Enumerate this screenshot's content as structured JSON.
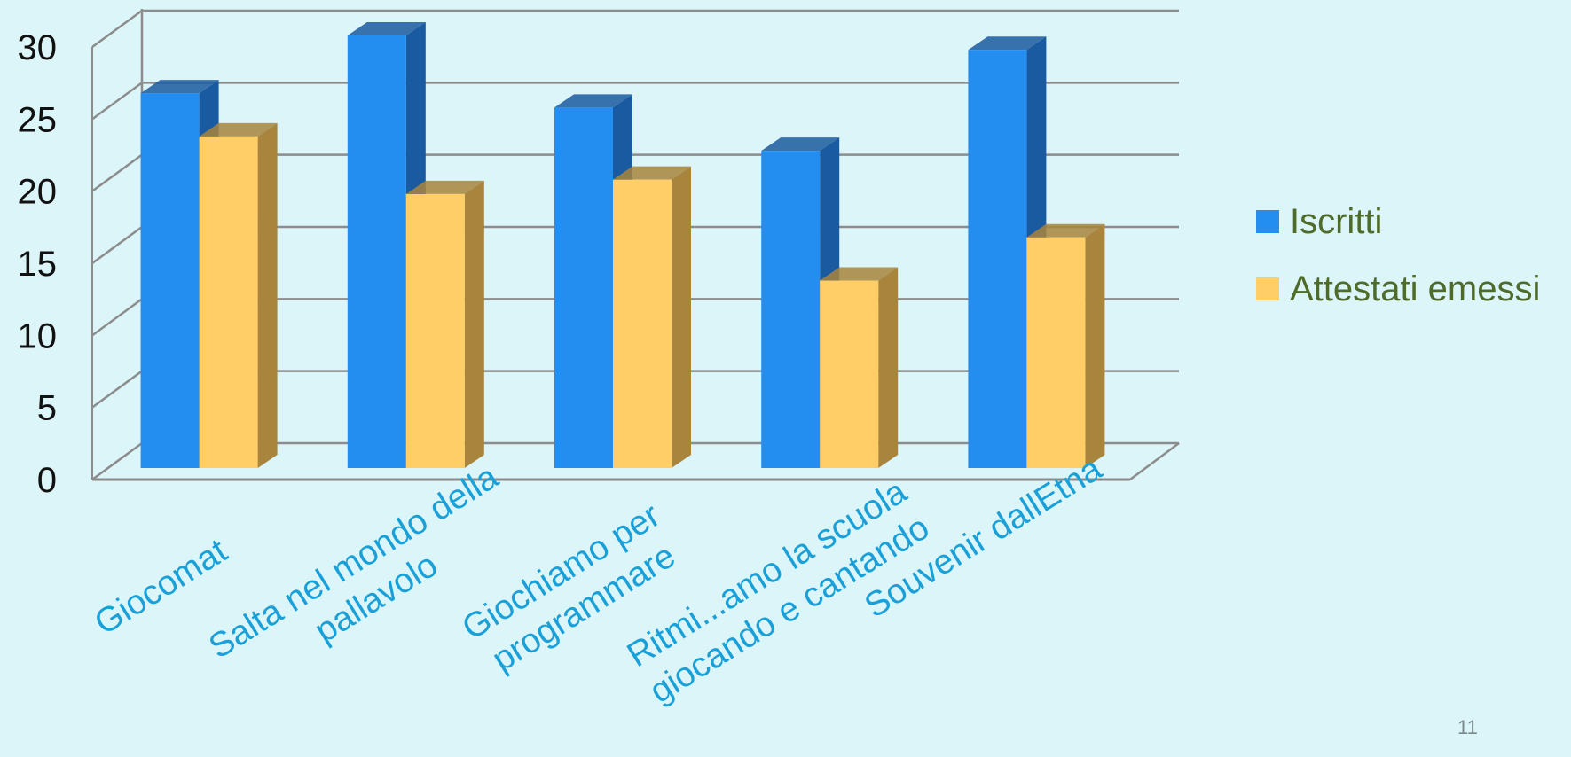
{
  "chart_data": {
    "type": "bar",
    "categories": [
      "Giocomat",
      "Salta nel mondo della pallavolo",
      "Giochiamo per programmare",
      "Ritmi...amo la scuola giocando e cantando",
      "Souvenir dallEtna"
    ],
    "category_lines": [
      [
        "Giocomat"
      ],
      [
        "Salta nel mondo della",
        "pallavolo"
      ],
      [
        "Giochiamo per",
        "programmare"
      ],
      [
        "Ritmi...amo la scuola",
        "giocando e cantando"
      ],
      [
        "Souvenir dallEtna"
      ]
    ],
    "series": [
      {
        "name": "Iscritti",
        "values": [
          26,
          30,
          25,
          22,
          29
        ],
        "color": "#238df0",
        "side_color": "#1a5aa0"
      },
      {
        "name": "Attestati emessi",
        "values": [
          23,
          19,
          20,
          13,
          16
        ],
        "color": "#ffce66",
        "side_color": "#a8843c"
      }
    ],
    "ylim": [
      0,
      30
    ],
    "yticks": [
      "0",
      "5",
      "10",
      "15",
      "20",
      "25",
      "30"
    ],
    "grid": true,
    "legend": "right",
    "style": "3d-clustered-column",
    "category_label_color": "#1aa0d8"
  },
  "legend": {
    "items": [
      {
        "label": "Iscritti",
        "color": "#238df0"
      },
      {
        "label": "Attestati emessi",
        "color": "#ffce66"
      }
    ]
  },
  "page_number": "11"
}
